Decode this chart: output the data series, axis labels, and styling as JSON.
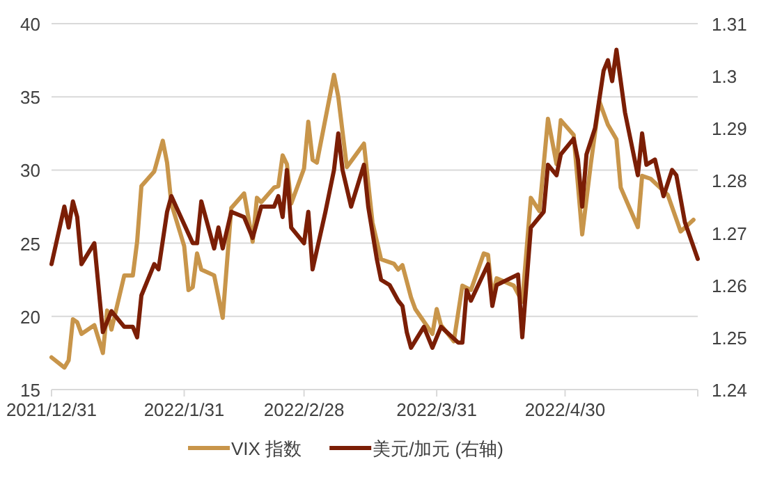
{
  "chart_data": {
    "type": "line",
    "grid": "y",
    "legend": "bottom",
    "xlim": [
      "2021-12-31",
      "2022-05-31"
    ],
    "xticks": [
      {
        "value": "2021-12-31",
        "label": "2021/12/31"
      },
      {
        "value": "2022-01-31",
        "label": "2022/1/31"
      },
      {
        "value": "2022-02-28",
        "label": "2022/2/28"
      },
      {
        "value": "2022-03-31",
        "label": "2022/3/31"
      },
      {
        "value": "2022-04-30",
        "label": "2022/4/30"
      },
      {
        "value": "2022-05-31",
        "label": null
      }
    ],
    "ylim": [
      15,
      40
    ],
    "yticks": [
      15,
      20,
      25,
      30,
      35,
      40
    ],
    "y2lim": [
      1.24,
      1.31
    ],
    "y2ticks": [
      1.24,
      1.25,
      1.26,
      1.27,
      1.28,
      1.29,
      1.3,
      1.31
    ],
    "series": [
      {
        "name": "VIX 指数",
        "color": "#c8954a",
        "x": [
          "2021-12-31",
          "2022-01-03",
          "2022-01-04",
          "2022-01-05",
          "2022-01-06",
          "2022-01-07",
          "2022-01-10",
          "2022-01-12",
          "2022-01-13",
          "2022-01-14",
          "2022-01-17",
          "2022-01-19",
          "2022-01-20",
          "2022-01-21",
          "2022-01-24",
          "2022-01-26",
          "2022-01-27",
          "2022-01-28",
          "2022-01-31",
          "2022-02-01",
          "2022-02-02",
          "2022-02-03",
          "2022-02-04",
          "2022-02-07",
          "2022-02-09",
          "2022-02-11",
          "2022-02-14",
          "2022-02-16",
          "2022-02-17",
          "2022-02-18",
          "2022-02-21",
          "2022-02-22",
          "2022-02-23",
          "2022-02-24",
          "2022-02-25",
          "2022-02-28",
          "2022-03-01",
          "2022-03-02",
          "2022-03-03",
          "2022-03-07",
          "2022-03-08",
          "2022-03-10",
          "2022-03-14",
          "2022-03-16",
          "2022-03-18",
          "2022-03-21",
          "2022-03-22",
          "2022-03-23",
          "2022-03-25",
          "2022-03-26",
          "2022-03-30",
          "2022-03-31",
          "2022-04-01",
          "2022-04-04",
          "2022-04-06",
          "2022-04-08",
          "2022-04-11",
          "2022-04-12",
          "2022-04-13",
          "2022-04-14",
          "2022-04-18",
          "2022-04-20",
          "2022-04-22",
          "2022-04-24",
          "2022-04-26",
          "2022-04-28",
          "2022-04-29",
          "2022-05-02",
          "2022-05-04",
          "2022-05-06",
          "2022-05-08",
          "2022-05-10",
          "2022-05-12",
          "2022-05-13",
          "2022-05-17",
          "2022-05-18",
          "2022-05-20",
          "2022-05-24",
          "2022-05-27",
          "2022-05-30"
        ],
        "values": [
          17.2,
          16.5,
          17.0,
          19.8,
          19.6,
          18.8,
          19.4,
          17.5,
          20.4,
          19.1,
          22.8,
          22.8,
          25.1,
          28.9,
          29.9,
          32.0,
          30.5,
          27.7,
          24.8,
          21.8,
          22.0,
          24.3,
          23.2,
          22.8,
          19.9,
          27.4,
          28.4,
          25.1,
          28.1,
          27.8,
          28.8,
          28.9,
          31.0,
          30.4,
          27.7,
          30.1,
          33.3,
          30.7,
          30.5,
          36.5,
          35.0,
          30.2,
          31.8,
          26.4,
          23.9,
          23.6,
          23.2,
          23.5,
          21.3,
          20.5,
          18.8,
          20.5,
          19.4,
          18.3,
          22.1,
          21.8,
          24.3,
          24.2,
          21.3,
          22.6,
          22.1,
          21.0,
          28.1,
          27.2,
          33.5,
          30.4,
          33.4,
          32.4,
          25.6,
          30.4,
          34.7,
          33.1,
          32.1,
          28.8,
          26.1,
          29.6,
          29.4,
          28.3,
          25.8,
          26.6
        ]
      },
      {
        "name": "美元/加元 (右轴)",
        "color": "#7b1e05",
        "axis": "y2",
        "x": [
          "2021-12-31",
          "2022-01-03",
          "2022-01-04",
          "2022-01-05",
          "2022-01-06",
          "2022-01-07",
          "2022-01-10",
          "2022-01-12",
          "2022-01-14",
          "2022-01-17",
          "2022-01-19",
          "2022-01-20",
          "2022-01-21",
          "2022-01-24",
          "2022-01-25",
          "2022-01-27",
          "2022-01-28",
          "2022-02-02",
          "2022-02-03",
          "2022-02-04",
          "2022-02-07",
          "2022-02-08",
          "2022-02-09",
          "2022-02-11",
          "2022-02-14",
          "2022-02-16",
          "2022-02-18",
          "2022-02-21",
          "2022-02-22",
          "2022-02-23",
          "2022-02-24",
          "2022-02-25",
          "2022-02-28",
          "2022-03-01",
          "2022-03-02",
          "2022-03-05",
          "2022-03-07",
          "2022-03-08",
          "2022-03-09",
          "2022-03-11",
          "2022-03-14",
          "2022-03-15",
          "2022-03-17",
          "2022-03-18",
          "2022-03-20",
          "2022-03-22",
          "2022-03-23",
          "2022-03-24",
          "2022-03-25",
          "2022-03-28",
          "2022-03-30",
          "2022-04-01",
          "2022-04-05",
          "2022-04-06",
          "2022-04-07",
          "2022-04-08",
          "2022-04-12",
          "2022-04-13",
          "2022-04-14",
          "2022-04-19",
          "2022-04-20",
          "2022-04-22",
          "2022-04-25",
          "2022-04-26",
          "2022-04-28",
          "2022-04-29",
          "2022-05-02",
          "2022-05-03",
          "2022-05-04",
          "2022-05-05",
          "2022-05-07",
          "2022-05-09",
          "2022-05-10",
          "2022-05-11",
          "2022-05-12",
          "2022-05-14",
          "2022-05-17",
          "2022-05-18",
          "2022-05-19",
          "2022-05-21",
          "2022-05-23",
          "2022-05-25",
          "2022-05-26",
          "2022-05-28",
          "2022-05-31"
        ],
        "values": [
          1.264,
          1.275,
          1.271,
          1.276,
          1.273,
          1.264,
          1.268,
          1.251,
          1.255,
          1.252,
          1.252,
          1.25,
          1.258,
          1.264,
          1.263,
          1.274,
          1.277,
          1.268,
          1.268,
          1.276,
          1.267,
          1.271,
          1.267,
          1.274,
          1.273,
          1.269,
          1.275,
          1.275,
          1.277,
          1.273,
          1.282,
          1.271,
          1.268,
          1.274,
          1.263,
          1.274,
          1.282,
          1.289,
          1.282,
          1.275,
          1.283,
          1.275,
          1.265,
          1.261,
          1.26,
          1.257,
          1.256,
          1.251,
          1.248,
          1.252,
          1.248,
          1.252,
          1.249,
          1.249,
          1.259,
          1.257,
          1.264,
          1.256,
          1.26,
          1.262,
          1.25,
          1.271,
          1.274,
          1.283,
          1.281,
          1.285,
          1.288,
          1.284,
          1.275,
          1.285,
          1.29,
          1.301,
          1.303,
          1.299,
          1.305,
          1.293,
          1.281,
          1.289,
          1.283,
          1.284,
          1.277,
          1.282,
          1.281,
          1.272,
          1.265
        ]
      }
    ]
  }
}
